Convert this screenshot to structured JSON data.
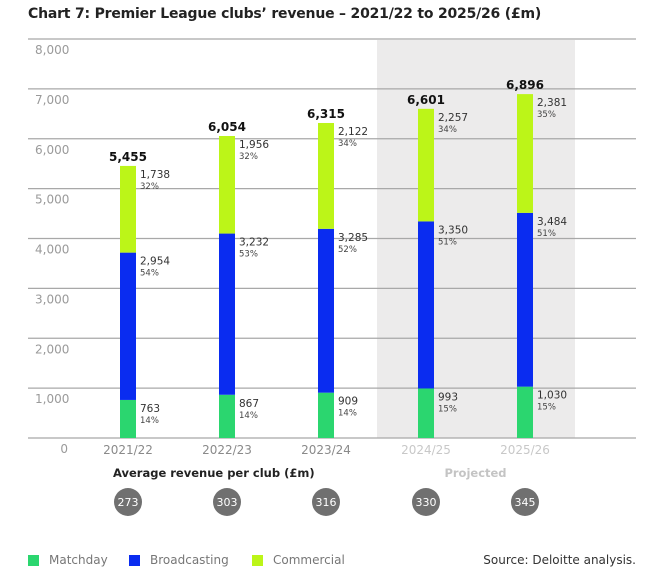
{
  "chart_data": {
    "type": "bar",
    "stacked": true,
    "title": "Chart 7: Premier League clubs’ revenue – 2021/22 to 2025/26 (£m)",
    "xlabel": "",
    "ylabel": "",
    "ylim": [
      0,
      8000
    ],
    "yticks": [
      0,
      1000,
      2000,
      3000,
      4000,
      5000,
      6000,
      7000,
      8000
    ],
    "ytick_labels": [
      "0",
      "1,000",
      "2,000",
      "3,000",
      "4,000",
      "5,000",
      "6,000",
      "7,000",
      "8,000"
    ],
    "grid": true,
    "categories": [
      "2021/22",
      "2022/23",
      "2023/24",
      "2024/25",
      "2025/26"
    ],
    "projected": [
      false,
      false,
      false,
      true,
      true
    ],
    "projected_label": "Projected",
    "totals": [
      5455,
      6054,
      6315,
      6601,
      6896
    ],
    "total_labels": [
      "5,455",
      "6,054",
      "6,315",
      "6,601",
      "6,896"
    ],
    "series": [
      {
        "name": "Matchday",
        "color": "#2bd66f",
        "values": [
          763,
          867,
          909,
          993,
          1030
        ],
        "labels": [
          "763",
          "867",
          "909",
          "993",
          "1,030"
        ],
        "percents": [
          "14%",
          "14%",
          "14%",
          "15%",
          "15%"
        ]
      },
      {
        "name": "Broadcasting",
        "color": "#0a2cf0",
        "values": [
          2954,
          3232,
          3285,
          3350,
          3484
        ],
        "labels": [
          "2,954",
          "3,232",
          "3,285",
          "3,350",
          "3,484"
        ],
        "percents": [
          "54%",
          "53%",
          "52%",
          "51%",
          "51%"
        ]
      },
      {
        "name": "Commercial",
        "color": "#bcf518",
        "values": [
          1738,
          1956,
          2122,
          2257,
          2381
        ],
        "labels": [
          "1,738",
          "1,956",
          "2,122",
          "2,257",
          "2,381"
        ],
        "percents": [
          "32%",
          "32%",
          "34%",
          "34%",
          "35%"
        ]
      }
    ],
    "legend": "bottom-left",
    "average_revenue_title": "Average revenue per club (£m)",
    "average_revenue": [
      273,
      303,
      316,
      330,
      345
    ],
    "source": "Source: Deloitte analysis."
  }
}
